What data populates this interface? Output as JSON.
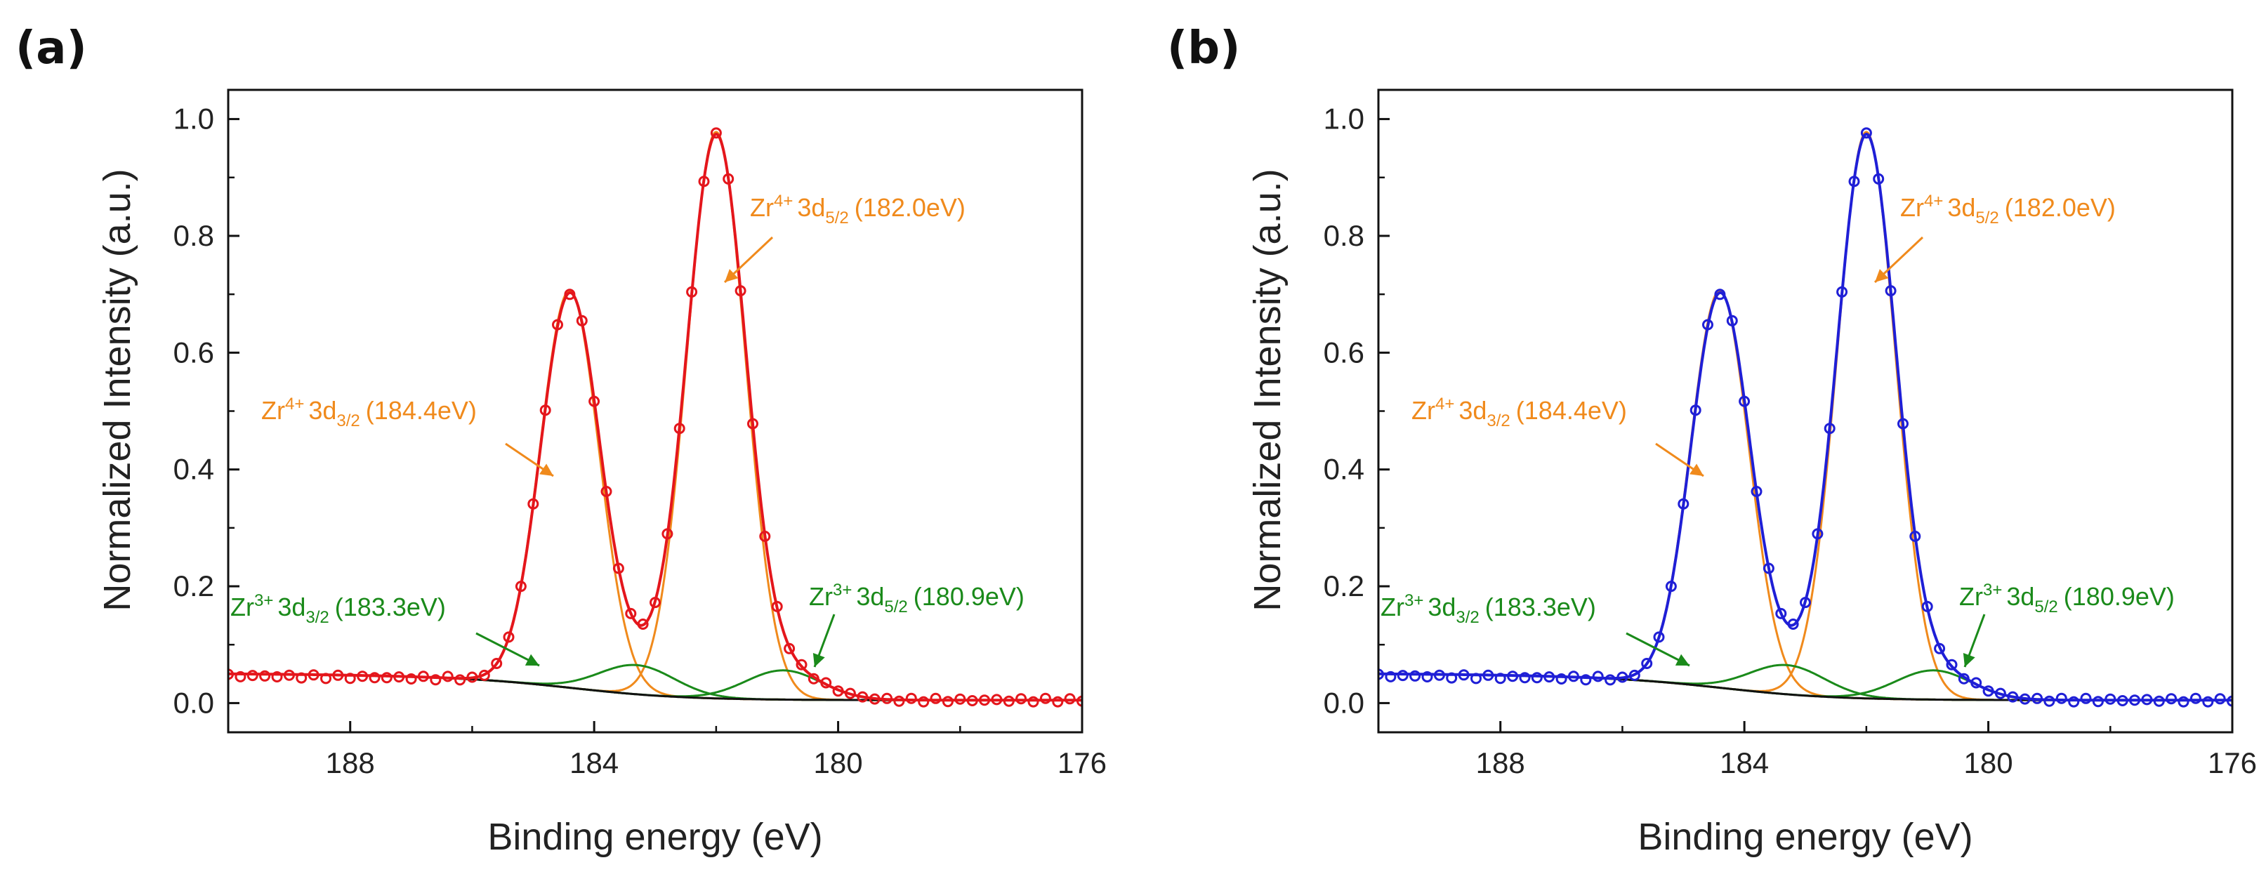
{
  "chart_data": [
    {
      "panel": "(a)",
      "type": "line",
      "xlabel": "Binding energy (eV)",
      "ylabel": "Normalized Intensity (a.u.)",
      "xlim": [
        190,
        176
      ],
      "ylim": [
        -0.05,
        1.05
      ],
      "xticks": [
        188,
        184,
        180,
        176
      ],
      "yticks": [
        0.0,
        0.2,
        0.4,
        0.6,
        0.8,
        1.0
      ],
      "grid": false,
      "series": [
        {
          "name": "Experimental data",
          "style": "markers",
          "color": "#e4161c"
        },
        {
          "name": "Fit envelope",
          "style": "line",
          "color": "#e4161c"
        },
        {
          "name": "Zr4+ 3d5/2",
          "center": 182.0,
          "height": 0.97,
          "color": "#f08a1c"
        },
        {
          "name": "Zr4+ 3d3/2",
          "center": 184.4,
          "height": 0.68,
          "color": "#f08a1c"
        },
        {
          "name": "Zr3+ 3d3/2",
          "center": 183.3,
          "height": 0.05,
          "color": "#1a8a1a"
        },
        {
          "name": "Zr3+ 3d5/2",
          "center": 180.9,
          "height": 0.05,
          "color": "#1a8a1a"
        },
        {
          "name": "Background",
          "style": "line",
          "color": "#111111"
        }
      ],
      "annotations": [
        {
          "ion": "Zr",
          "charge": "4+",
          "orbital": "3d",
          "sub": "5/2",
          "energy": "(182.0eV)",
          "color": "#f08a1c"
        },
        {
          "ion": "Zr",
          "charge": "4+",
          "orbital": "3d",
          "sub": "3/2",
          "energy": "(184.4eV)",
          "color": "#f08a1c"
        },
        {
          "ion": "Zr",
          "charge": "3+",
          "orbital": "3d",
          "sub": "3/2",
          "energy": "(183.3eV)",
          "color": "#1a8a1a"
        },
        {
          "ion": "Zr",
          "charge": "3+",
          "orbital": "3d",
          "sub": "5/2",
          "energy": "(180.9eV)",
          "color": "#1a8a1a"
        }
      ]
    },
    {
      "panel": "(b)",
      "type": "line",
      "xlabel": "Binding energy (eV)",
      "ylabel": "Normalized Intensity (a.u.)",
      "xlim": [
        190,
        176
      ],
      "ylim": [
        -0.05,
        1.05
      ],
      "xticks": [
        188,
        184,
        180,
        176
      ],
      "yticks": [
        0.0,
        0.2,
        0.4,
        0.6,
        0.8,
        1.0
      ],
      "grid": false,
      "series": [
        {
          "name": "Experimental data",
          "style": "markers",
          "color": "#1f1fd6"
        },
        {
          "name": "Fit envelope",
          "style": "line",
          "color": "#1f1fd6"
        },
        {
          "name": "Zr4+ 3d5/2",
          "center": 182.0,
          "height": 0.97,
          "color": "#f08a1c"
        },
        {
          "name": "Zr4+ 3d3/2",
          "center": 184.4,
          "height": 0.68,
          "color": "#f08a1c"
        },
        {
          "name": "Zr3+ 3d3/2",
          "center": 183.3,
          "height": 0.05,
          "color": "#1a8a1a"
        },
        {
          "name": "Zr3+ 3d5/2",
          "center": 180.9,
          "height": 0.05,
          "color": "#1a8a1a"
        },
        {
          "name": "Background",
          "style": "line",
          "color": "#111111"
        }
      ],
      "annotations": [
        {
          "ion": "Zr",
          "charge": "4+",
          "orbital": "3d",
          "sub": "5/2",
          "energy": "(182.0eV)",
          "color": "#f08a1c"
        },
        {
          "ion": "Zr",
          "charge": "4+",
          "orbital": "3d",
          "sub": "3/2",
          "energy": "(184.4eV)",
          "color": "#f08a1c"
        },
        {
          "ion": "Zr",
          "charge": "3+",
          "orbital": "3d",
          "sub": "3/2",
          "energy": "(183.3eV)",
          "color": "#1a8a1a"
        },
        {
          "ion": "Zr",
          "charge": "3+",
          "orbital": "3d",
          "sub": "5/2",
          "energy": "(180.9eV)",
          "color": "#1a8a1a"
        }
      ]
    }
  ]
}
